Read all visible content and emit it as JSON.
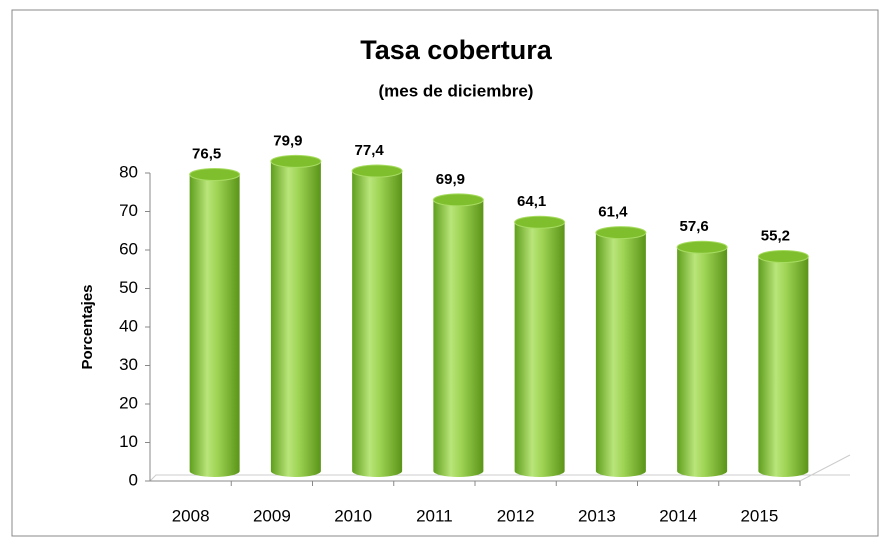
{
  "chart_data": {
    "type": "bar",
    "title": "Tasa cobertura",
    "subtitle": "(mes de diciembre)",
    "y_label": "Porcentajes",
    "categories": [
      "2008",
      "2009",
      "2010",
      "2011",
      "2012",
      "2013",
      "2014",
      "2015"
    ],
    "values": [
      76.5,
      79.9,
      77.4,
      69.9,
      64.1,
      61.4,
      57.6,
      55.2
    ],
    "value_labels": [
      "76,5",
      "79,9",
      "77,4",
      "69,9",
      "64,1",
      "61,4",
      "57,6",
      "55,2"
    ],
    "color": "#8cc63f",
    "ylim": [
      0,
      80
    ],
    "yticks": [
      0,
      10,
      20,
      30,
      40,
      50,
      60,
      70,
      80
    ],
    "grid": false
  }
}
